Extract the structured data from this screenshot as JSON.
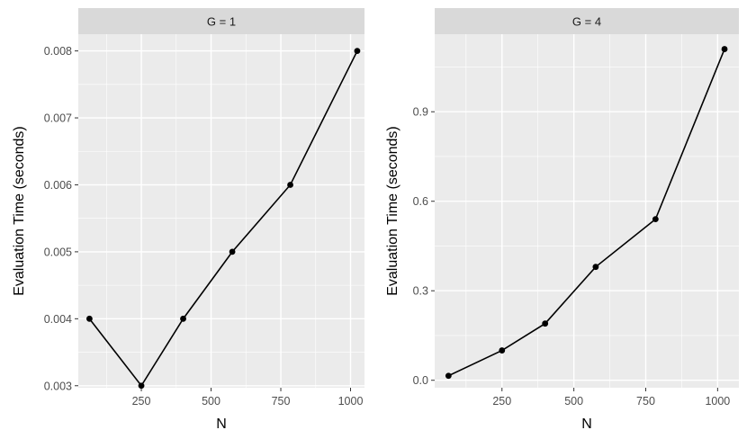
{
  "chart_data": [
    {
      "type": "line",
      "facet_label": "G = 1",
      "xlabel": "N",
      "ylabel": "Evaluation Time (seconds)",
      "xlim": [
        24,
        1050
      ],
      "ylim": [
        0.00297,
        0.00825
      ],
      "x_ticks": [
        250,
        500,
        750,
        1000
      ],
      "x_tick_labels": [
        "250",
        "500",
        "750",
        "1000"
      ],
      "y_ticks": [
        0.003,
        0.004,
        0.005,
        0.006,
        0.007,
        0.008
      ],
      "y_tick_labels": [
        "0.003",
        "0.004",
        "0.005",
        "0.006",
        "0.007",
        "0.008"
      ],
      "grid": true,
      "series": [
        {
          "x": [
            64,
            250,
            400,
            576,
            784,
            1024
          ],
          "y": [
            0.004,
            0.003,
            0.004,
            0.005,
            0.006,
            0.008
          ],
          "color": "#000000"
        }
      ]
    },
    {
      "type": "line",
      "facet_label": "G = 4",
      "xlabel": "N",
      "ylabel": "Evaluation Time (seconds)",
      "xlim": [
        16,
        1074
      ],
      "ylim": [
        -0.025,
        1.16
      ],
      "x_ticks": [
        250,
        500,
        750,
        1000
      ],
      "x_tick_labels": [
        "250",
        "500",
        "750",
        "1000"
      ],
      "y_ticks": [
        0.0,
        0.3,
        0.6,
        0.9
      ],
      "y_tick_labels": [
        "0.0",
        "0.3",
        "0.6",
        "0.9"
      ],
      "grid": true,
      "series": [
        {
          "x": [
            64,
            250,
            400,
            576,
            784,
            1024
          ],
          "y": [
            0.015,
            0.1,
            0.19,
            0.38,
            0.54,
            1.11
          ],
          "color": "#000000"
        }
      ]
    }
  ]
}
